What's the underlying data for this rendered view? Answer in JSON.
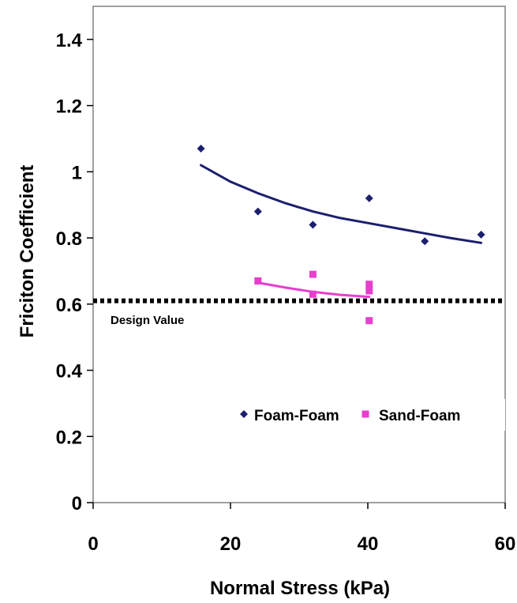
{
  "chart_data": {
    "type": "scatter",
    "xlabel": "Normal Stress (kPa)",
    "ylabel": "Friciton Coefficient",
    "xlim": [
      0,
      60
    ],
    "ylim": [
      0,
      1.5
    ],
    "x_ticks": [
      "0",
      "20",
      "40",
      "60"
    ],
    "y_ticks": [
      "0",
      "0.2",
      "0.4",
      "0.6",
      "0.8",
      "1",
      "1.2",
      "1.4"
    ],
    "grid": false,
    "legend_position": "lower-right",
    "series": [
      {
        "name": "Foam-Foam",
        "marker": "diamond",
        "color": "#1c1f6e",
        "points": [
          [
            15.7,
            1.07
          ],
          [
            24,
            0.88
          ],
          [
            32,
            0.84
          ],
          [
            40.2,
            0.92
          ],
          [
            48.3,
            0.79
          ],
          [
            56.5,
            0.81
          ]
        ],
        "trendline": [
          [
            15.7,
            1.02
          ],
          [
            20,
            0.97
          ],
          [
            24,
            0.935
          ],
          [
            28,
            0.905
          ],
          [
            32,
            0.88
          ],
          [
            36,
            0.86
          ],
          [
            40,
            0.845
          ],
          [
            44,
            0.83
          ],
          [
            48,
            0.815
          ],
          [
            52,
            0.8
          ],
          [
            56.5,
            0.785
          ]
        ]
      },
      {
        "name": "Sand-Foam",
        "marker": "square",
        "color": "#e83ecf",
        "points": [
          [
            24,
            0.67
          ],
          [
            32,
            0.69
          ],
          [
            32,
            0.63
          ],
          [
            40.2,
            0.66
          ],
          [
            40.2,
            0.64
          ],
          [
            40.2,
            0.55
          ]
        ],
        "trendline": [
          [
            24,
            0.665
          ],
          [
            28,
            0.65
          ],
          [
            32,
            0.637
          ],
          [
            36,
            0.628
          ],
          [
            40.2,
            0.622
          ]
        ]
      }
    ],
    "reference_line": {
      "label": "Design Value",
      "y": 0.61,
      "style": "dotted",
      "color": "#000000"
    }
  }
}
